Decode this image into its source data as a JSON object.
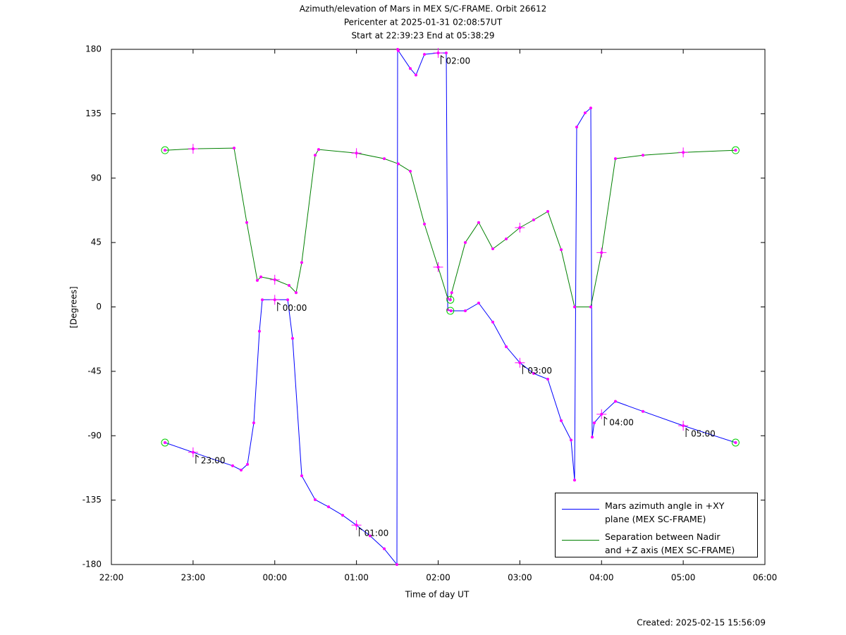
{
  "chart_data": {
    "type": "line",
    "title_lines": [
      "Azimuth/elevation of Mars in MEX S/C-FRAME.  Orbit 26612",
      "Pericenter at 2025-01-31 02:08:57UT",
      "Start at 22:39:23 End at 05:38:29"
    ],
    "xlabel": "Time of day UT",
    "ylabel": "[Degrees]",
    "footer": "Created: 2025-02-15 15:56:09",
    "xlim": [
      22,
      30
    ],
    "xticks": [
      {
        "value": 22,
        "label": "22:00"
      },
      {
        "value": 23,
        "label": "23:00"
      },
      {
        "value": 24,
        "label": "00:00"
      },
      {
        "value": 25,
        "label": "01:00"
      },
      {
        "value": 26,
        "label": "02:00"
      },
      {
        "value": 27,
        "label": "03:00"
      },
      {
        "value": 28,
        "label": "04:00"
      },
      {
        "value": 29,
        "label": "05:00"
      },
      {
        "value": 30,
        "label": "06:00"
      }
    ],
    "ylim": [
      -180,
      180
    ],
    "yticks": [
      -180,
      -135,
      -90,
      -45,
      0,
      45,
      90,
      135,
      180
    ],
    "marker_color": "#ff00ff",
    "circle_color": "#00cc00",
    "series": [
      {
        "name": "Mars azimuth angle in +XY\nplane (MEX SC-FRAME)",
        "color": "#0000ff",
        "x": [
          22.656,
          23.0,
          23.484,
          23.588,
          23.666,
          23.743,
          23.812,
          23.847,
          24.0,
          24.158,
          24.218,
          24.33,
          24.494,
          24.658,
          24.831,
          25.0,
          25.167,
          25.34,
          25.495,
          25.504,
          25.512,
          25.659,
          25.728,
          25.832,
          26.0,
          26.099,
          26.117,
          26.157,
          26.332,
          26.496,
          26.669,
          26.833,
          27.0,
          27.169,
          27.342,
          27.506,
          27.627,
          27.67,
          27.696,
          27.799,
          27.868,
          27.886,
          27.911,
          28.0,
          28.17,
          28.507,
          29.0,
          29.641
        ],
        "values": [
          -94.8,
          -101.6,
          -111,
          -114,
          -110,
          -81,
          -17,
          5,
          5,
          5,
          -22,
          -118,
          -134.7,
          -139.7,
          -145.6,
          -152.5,
          -160,
          -169,
          -180,
          180,
          179,
          166.6,
          162,
          176.5,
          177.5,
          177.5,
          -2,
          -2.7,
          -2.7,
          2.7,
          -10.6,
          -27.8,
          -39,
          -46.5,
          -50.5,
          -79.5,
          -93,
          -121,
          125.7,
          135.6,
          139,
          -91,
          -81,
          -75,
          -66,
          -73,
          -83,
          -94.8
        ]
      },
      {
        "name": "Separation between Nadir\nand +Z axis (MEX SC-FRAME)",
        "color": "#008000",
        "x": [
          22.656,
          23.0,
          23.502,
          23.657,
          23.786,
          23.83,
          24.0,
          24.175,
          24.261,
          24.33,
          24.494,
          24.537,
          25.0,
          25.34,
          25.512,
          25.659,
          25.832,
          26.0,
          26.117,
          26.149,
          26.166,
          26.332,
          26.496,
          26.669,
          26.833,
          27.0,
          27.169,
          27.342,
          27.506,
          27.67,
          27.868,
          28.0,
          28.17,
          28.507,
          29.0,
          29.641
        ],
        "values": [
          109.5,
          110.5,
          111,
          59,
          18.5,
          21,
          19,
          15,
          10,
          31,
          106,
          110,
          107.5,
          103.6,
          100,
          94.8,
          57.9,
          27.8,
          6,
          5,
          10,
          45,
          59,
          40.6,
          47.5,
          55.4,
          60.8,
          66.7,
          40,
          0,
          0,
          38,
          103.6,
          106,
          108,
          109.5
        ]
      }
    ],
    "annotations": [
      {
        "x": 23.0,
        "y": -101.6,
        "label": "23:00"
      },
      {
        "x": 24.0,
        "y": 5,
        "label": "00:00"
      },
      {
        "x": 25.0,
        "y": -152.5,
        "label": "01:00"
      },
      {
        "x": 26.0,
        "y": 177.5,
        "label": "02:00"
      },
      {
        "x": 27.0,
        "y": -39,
        "label": "03:00"
      },
      {
        "x": 28.0,
        "y": -75,
        "label": "04:00"
      },
      {
        "x": 29.0,
        "y": -83,
        "label": "05:00"
      }
    ],
    "circle_points": [
      {
        "x": 22.656,
        "y": -94.8
      },
      {
        "x": 29.641,
        "y": -94.8
      },
      {
        "x": 22.656,
        "y": 109.5
      },
      {
        "x": 29.641,
        "y": 109.5
      },
      {
        "x": 26.149,
        "y": 5
      },
      {
        "x": 26.149,
        "y": -2.7
      }
    ]
  }
}
